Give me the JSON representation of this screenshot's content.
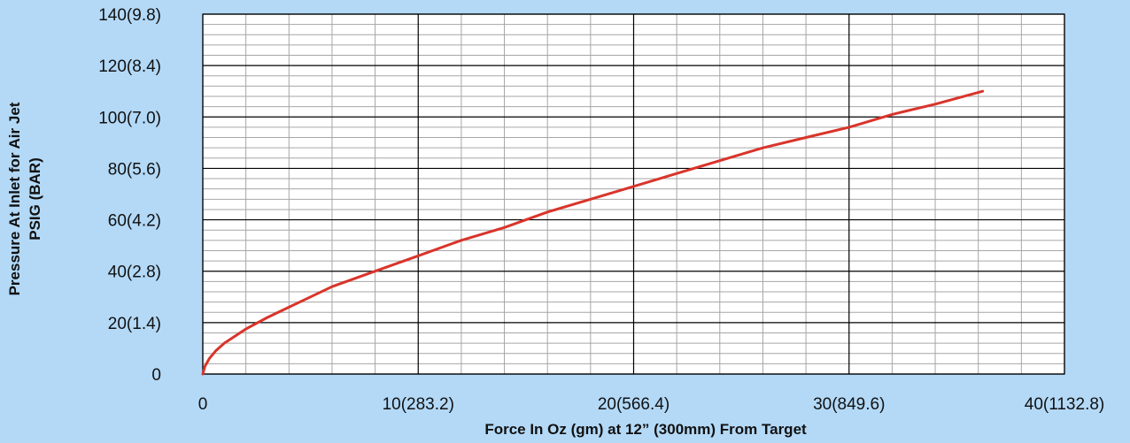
{
  "chart_data": {
    "type": "line",
    "title": "",
    "xlabel": "Force In Oz (gm) at 12” (300mm) From Target",
    "ylabel_line1": "Pressure At Inlet for Air Jet",
    "ylabel_line2": "PSIG (BAR)",
    "xlim": [
      0,
      40
    ],
    "ylim": [
      0,
      140
    ],
    "x_ticks": [
      {
        "value": 0,
        "label": "0"
      },
      {
        "value": 10,
        "label": "10(283.2)"
      },
      {
        "value": 20,
        "label": "20(566.4)"
      },
      {
        "value": 30,
        "label": "30(849.6)"
      },
      {
        "value": 40,
        "label": "40(1132.8)"
      }
    ],
    "y_ticks": [
      {
        "value": 0,
        "label": "0"
      },
      {
        "value": 20,
        "label": "20(1.4)"
      },
      {
        "value": 40,
        "label": "40(2.8)"
      },
      {
        "value": 60,
        "label": "60(4.2)"
      },
      {
        "value": 80,
        "label": "80(5.6)"
      },
      {
        "value": 100,
        "label": "100(7.0)"
      },
      {
        "value": 120,
        "label": "120(8.4)"
      },
      {
        "value": 140,
        "label": "140(9.8)"
      }
    ],
    "x_minor_step": 2,
    "y_minor_step": 4,
    "grid": true,
    "legend": "none",
    "series": [
      {
        "color": "#d9342b",
        "x": [
          0,
          0.1,
          0.3,
          0.6,
          1,
          2,
          3,
          4,
          5,
          6,
          8,
          10,
          12,
          14,
          16,
          18,
          20,
          22,
          24,
          26,
          28,
          30,
          32,
          34,
          36.2
        ],
        "y": [
          0,
          3,
          6,
          9,
          12,
          17.5,
          22,
          26,
          30,
          34,
          40,
          46,
          52,
          57,
          63,
          68,
          73,
          78,
          83,
          88,
          92,
          96,
          101,
          105,
          110
        ]
      }
    ]
  }
}
